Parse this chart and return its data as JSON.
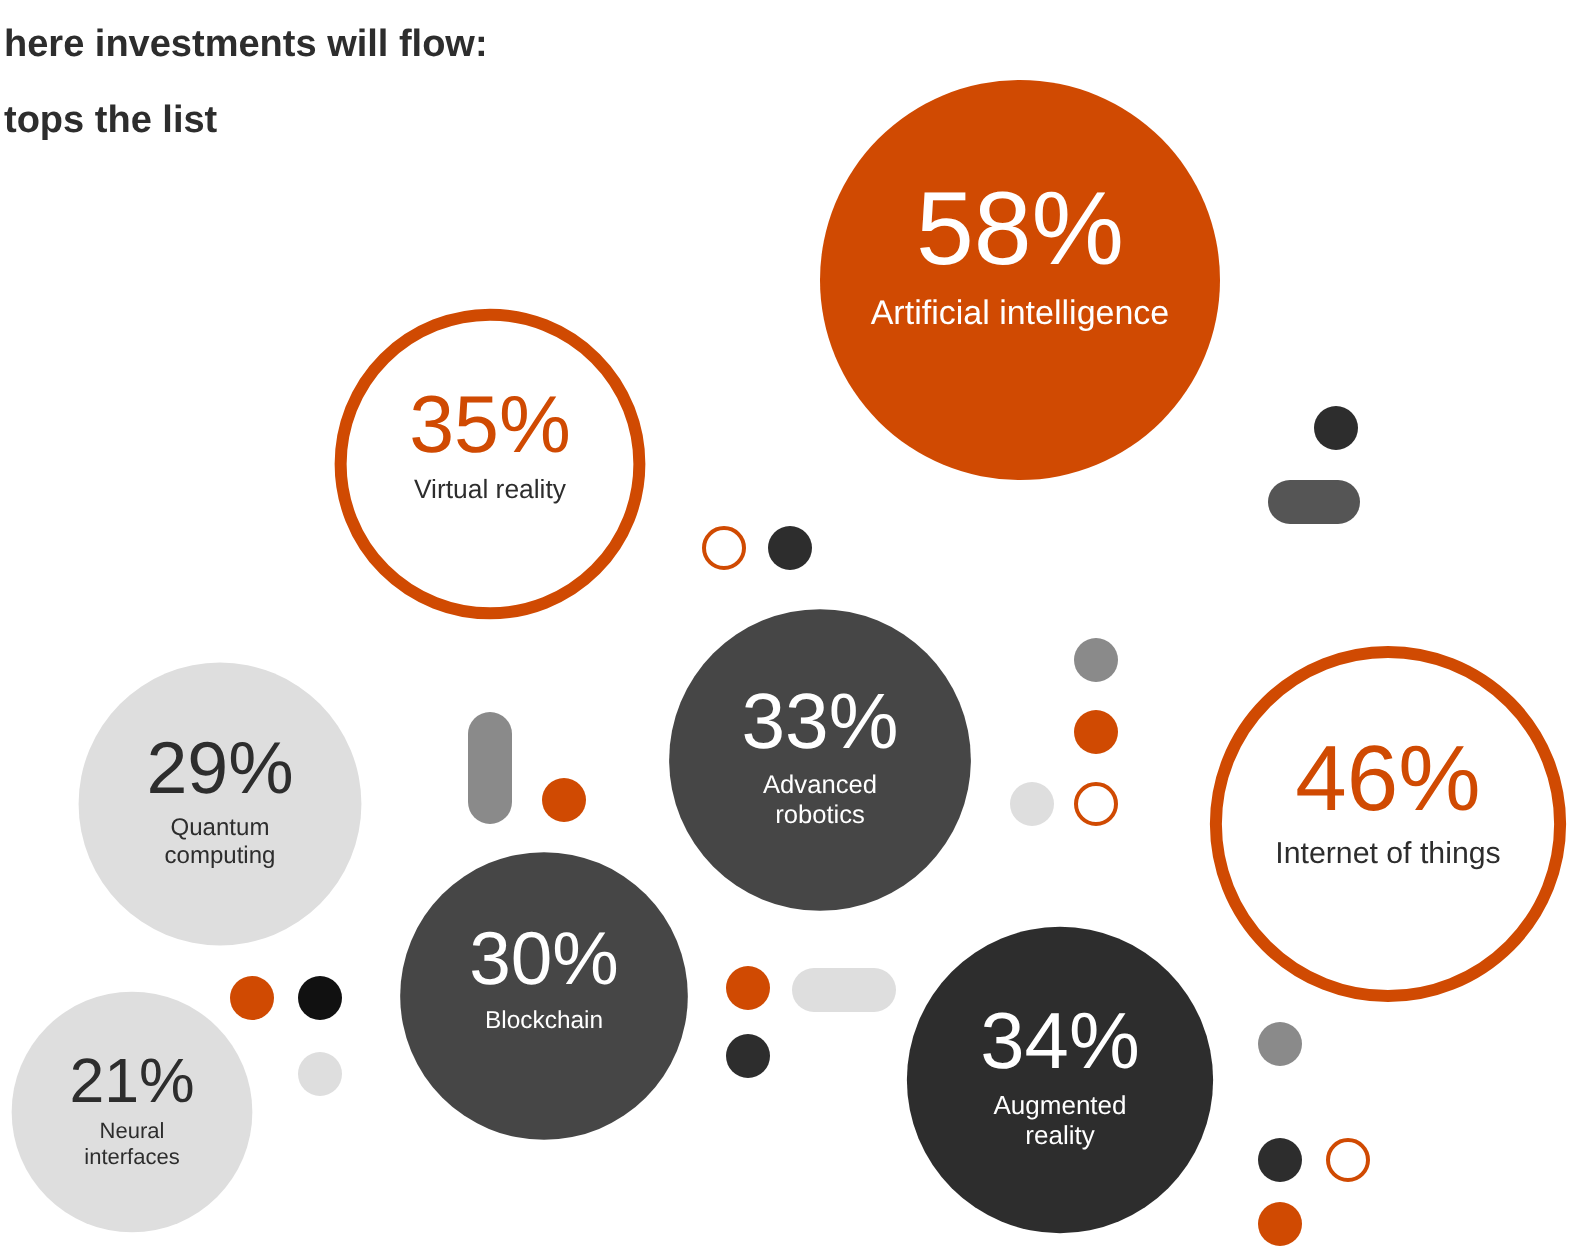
{
  "chart_data": {
    "type": "other",
    "title": "here investments will flow:",
    "subtitle": "tops the list",
    "categories": [
      "Artificial intelligence",
      "Virtual reality",
      "Internet of things",
      "Advanced robotics",
      "Augmented reality",
      "Blockchain",
      "Quantum computing",
      "Neural interfaces"
    ],
    "values": [
      58,
      35,
      46,
      33,
      34,
      30,
      29,
      21
    ],
    "value_labels": [
      "58%",
      "35%",
      "46%",
      "33%",
      "34%",
      "30%",
      "29%",
      "21%"
    ],
    "colors": [
      "#d04a02",
      "#d04a02",
      "#d04a02",
      "#464646",
      "#2d2d2d",
      "#464646",
      "#dedede",
      "#dedede"
    ]
  }
}
